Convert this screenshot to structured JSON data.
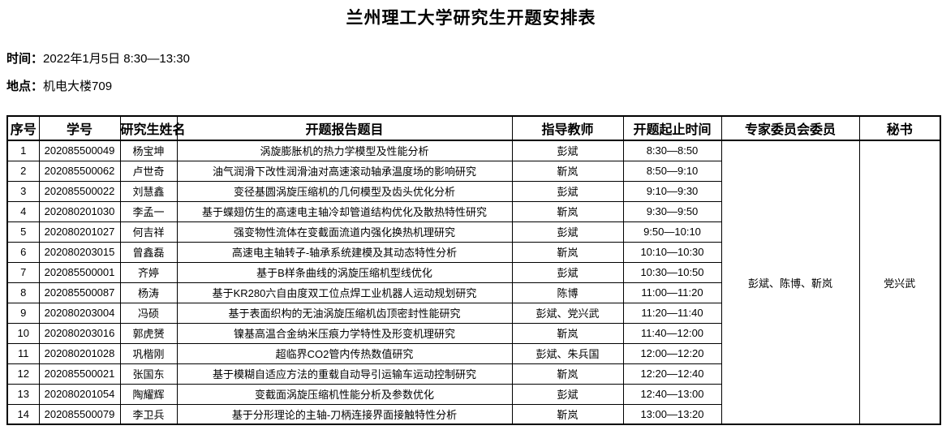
{
  "page": {
    "title": "兰州理工大学研究生开题安排表"
  },
  "meta": {
    "time_label": "时间：",
    "time_value": "2022年1月5日 8:30—13:30",
    "location_label": "地点：",
    "location_value": "机电大楼709"
  },
  "table": {
    "headers": [
      "序号",
      "学号",
      "研究生姓名",
      "开题报告题目",
      "指导教师",
      "开题起止时间",
      "专家委员会委员",
      "秘书"
    ],
    "committee": "彭斌、陈博、靳岚",
    "secretary": "党兴武",
    "rows": [
      {
        "no": "1",
        "student_id": "202085500049",
        "name": "杨宝坤",
        "topic": "涡旋膨胀机的热力学模型及性能分析",
        "advisor": "彭斌",
        "time": "8:30—8:50"
      },
      {
        "no": "2",
        "student_id": "202085500062",
        "name": "卢世奇",
        "topic": "油气润滑下改性润滑油对高速滚动轴承温度场的影响研究",
        "advisor": "靳岚",
        "time": "8:50—9:10"
      },
      {
        "no": "3",
        "student_id": "202085500022",
        "name": "刘慧鑫",
        "topic": "变径基圆涡旋压缩机的几何模型及齿头优化分析",
        "advisor": "彭斌",
        "time": "9:10—9:30"
      },
      {
        "no": "4",
        "student_id": "202080201030",
        "name": "李孟一",
        "topic": "基于蝶翅仿生的高速电主轴冷却管道结构优化及散热特性研究",
        "advisor": "靳岚",
        "time": "9:30—9:50"
      },
      {
        "no": "5",
        "student_id": "202080201027",
        "name": "何吉祥",
        "topic": "强变物性流体在变截面流道内强化换热机理研究",
        "advisor": "彭斌",
        "time": "9:50—10:10"
      },
      {
        "no": "6",
        "student_id": "202080203015",
        "name": "曾鑫磊",
        "topic": "高速电主轴转子-轴承系统建模及其动态特性分析",
        "advisor": "靳岚",
        "time": "10:10—10:30"
      },
      {
        "no": "7",
        "student_id": "202085500001",
        "name": "齐婷",
        "topic": "基于B样条曲线的涡旋压缩机型线优化",
        "advisor": "彭斌",
        "time": "10:30—10:50"
      },
      {
        "no": "8",
        "student_id": "202085500087",
        "name": "杨涛",
        "topic": "基于KR280六自由度双工位点焊工业机器人运动规划研究",
        "advisor": "陈博",
        "time": "11:00—11:20"
      },
      {
        "no": "9",
        "student_id": "202080203004",
        "name": "冯硕",
        "topic": "基于表面织构的无油涡旋压缩机齿顶密封性能研究",
        "advisor": "彭斌、党兴武",
        "time": "11:20—11:40"
      },
      {
        "no": "10",
        "student_id": "202080203016",
        "name": "郭虎赟",
        "topic": "镍基高温合金纳米压痕力学特性及形变机理研究",
        "advisor": "靳岚",
        "time": "11:40—12:00"
      },
      {
        "no": "11",
        "student_id": "202080201028",
        "name": "巩楷刚",
        "topic": "超临界CO2管内传热数值研究",
        "advisor": "彭斌、朱兵国",
        "time": "12:00—12:20"
      },
      {
        "no": "12",
        "student_id": "202085500021",
        "name": "张国东",
        "topic": "基于模糊自适应方法的重载自动导引运输车运动控制研究",
        "advisor": "靳岚",
        "time": "12:20—12:40"
      },
      {
        "no": "13",
        "student_id": "202080201054",
        "name": "陶耀辉",
        "topic": "变截面涡旋压缩机性能分析及参数优化",
        "advisor": "彭斌",
        "time": "12:40—13:00"
      },
      {
        "no": "14",
        "student_id": "202085500079",
        "name": "李卫兵",
        "topic": "基于分形理论的主轴-刀柄连接界面接触特性分析",
        "advisor": "靳岚",
        "time": "13:00—13:20"
      }
    ]
  }
}
